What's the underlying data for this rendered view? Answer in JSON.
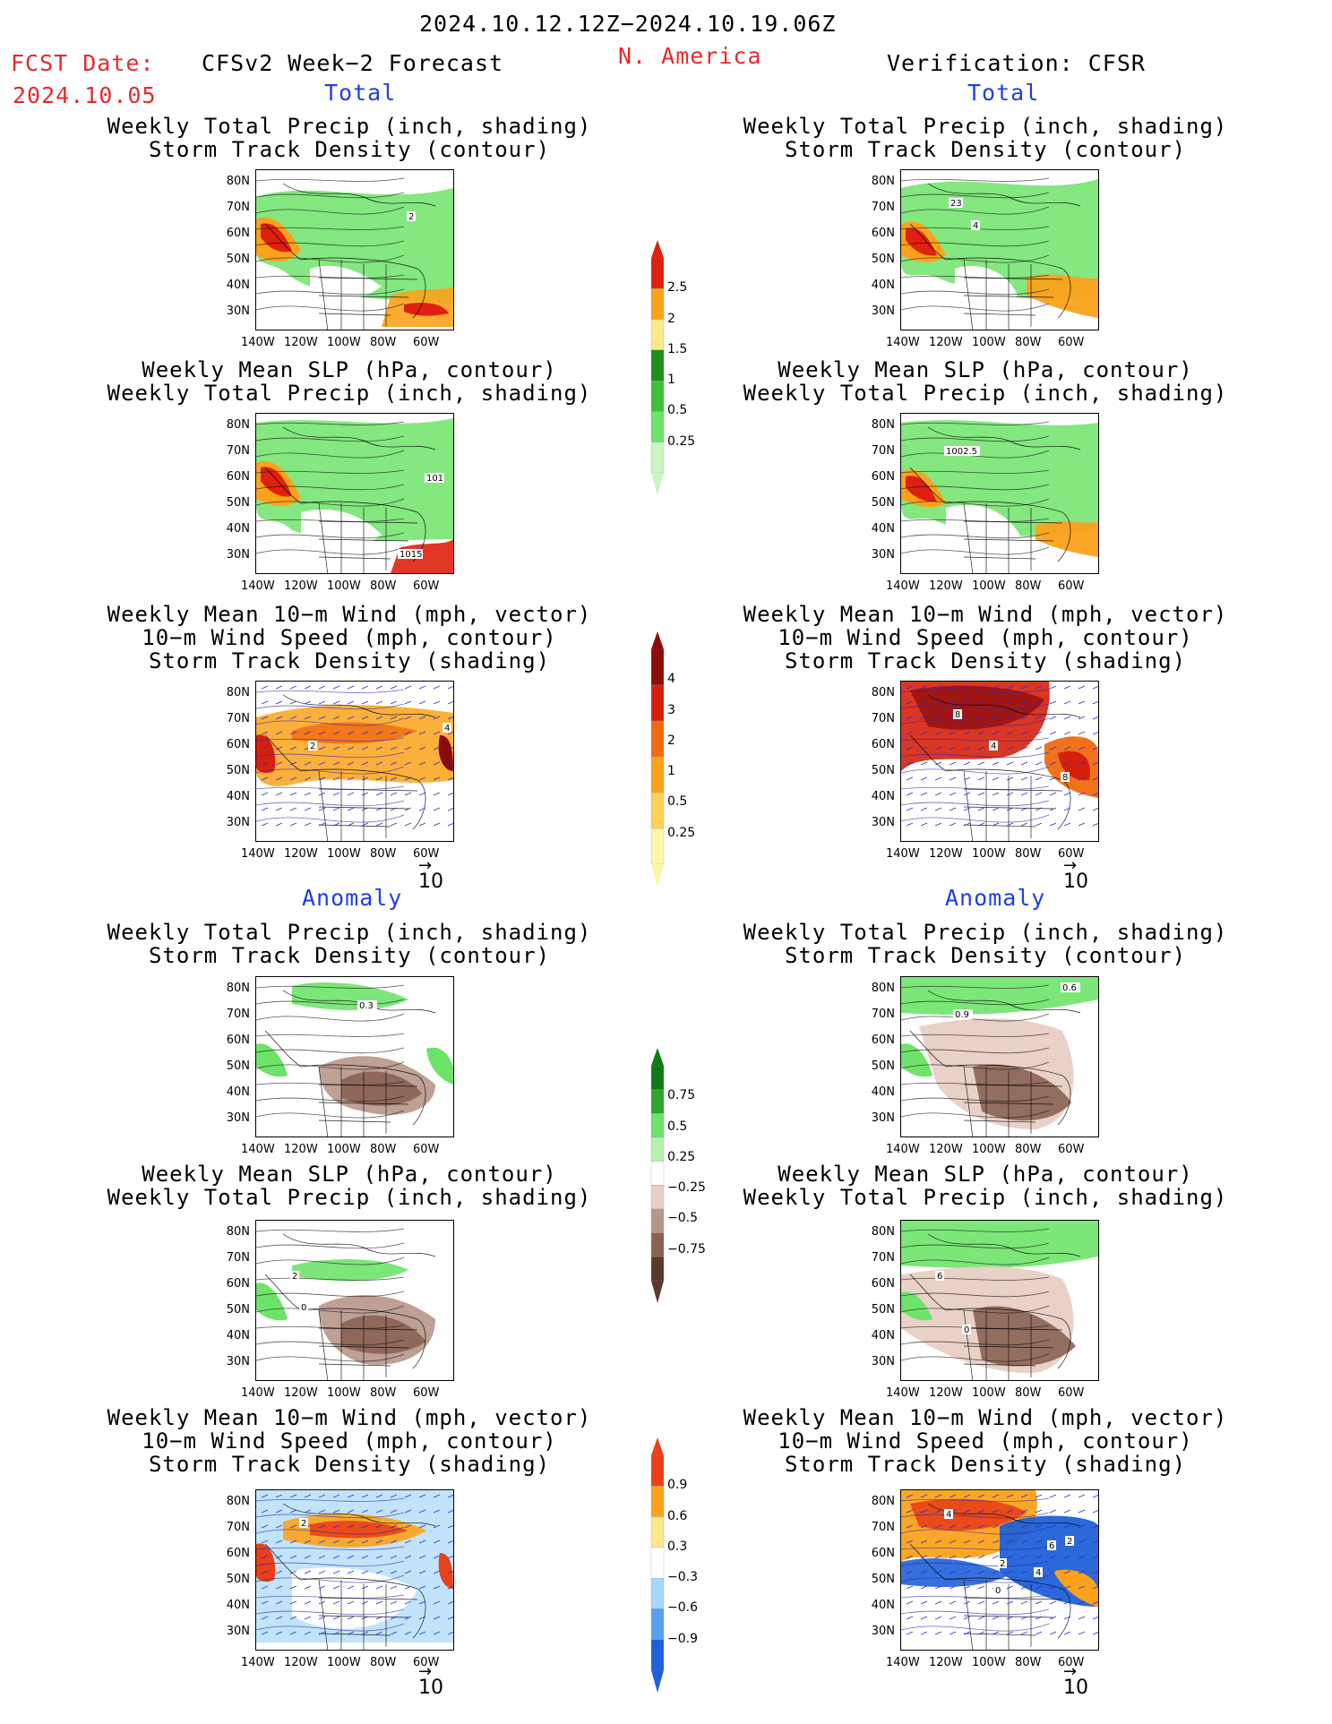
{
  "header": {
    "date_range": "2024.10.12.12Z−2024.10.19.06Z",
    "fcst_label": "FCST Date:",
    "fcst_date": "2024.10.05",
    "model_title": "CFSv2 Week−2 Forecast",
    "region": "N. America",
    "verification": "Verification: CFSR"
  },
  "sections": {
    "total": "Total",
    "anomaly": "Anomaly"
  },
  "panel_titles": {
    "precip_storm": [
      "Weekly Total Precip (inch, shading)",
      "Storm Track Density (contour)"
    ],
    "slp_precip": [
      "Weekly Mean SLP (hPa, contour)",
      "Weekly Total Precip (inch, shading)"
    ],
    "wind_storm": [
      "Weekly Mean 10−m Wind (mph, vector)",
      "10−m Wind Speed (mph, contour)",
      "Storm Track Density (shading)"
    ]
  },
  "axes": {
    "lat_labels": [
      "80N",
      "70N",
      "60N",
      "50N",
      "40N",
      "30N"
    ],
    "lon_labels": [
      "140W",
      "120W",
      "100W",
      "80W",
      "60W"
    ]
  },
  "vector_scale": "10",
  "colorbars": {
    "total_precip": [
      "2.5",
      "2",
      "1.5",
      "1",
      "0.5",
      "0.25"
    ],
    "total_storm": [
      "4",
      "3",
      "2",
      "1",
      "0.5",
      "0.25"
    ],
    "anom_precip": [
      "0.75",
      "0.5",
      "0.25",
      "−0.25",
      "−0.5",
      "−0.75"
    ],
    "anom_storm": [
      "0.9",
      "0.6",
      "0.3",
      "−0.3",
      "−0.6",
      "−0.9"
    ]
  },
  "contour_labels": {
    "fc_total_precip": [
      "2"
    ],
    "cf_total_precip": [
      "23",
      "4"
    ],
    "fc_total_slp": [
      "101",
      "1015"
    ],
    "cf_total_slp": [
      "1002.5"
    ],
    "fc_total_wind": [
      "2",
      "4"
    ],
    "cf_total_wind": [
      "8",
      "4",
      "8"
    ],
    "fc_anom_precip": [
      "0.3"
    ],
    "cf_anom_precip": [
      "0.9",
      "0.6"
    ],
    "fc_anom_slp": [
      "2",
      "0"
    ],
    "cf_anom_slp": [
      "6",
      "0"
    ],
    "fc_anom_wind": [
      "2"
    ],
    "cf_anom_wind": [
      "4",
      "6",
      "2",
      "2",
      "4",
      "0"
    ]
  },
  "colors": {
    "header_red": "#e8292b",
    "section_blue": "#1f3dea",
    "precip_scale": [
      "#c8f5c0",
      "#6ee36a",
      "#3cc23a",
      "#1f8f1f",
      "#fde88a",
      "#fba21a",
      "#e0200f"
    ],
    "storm_scale": [
      "#fff5a8",
      "#fdd25a",
      "#fba21a",
      "#f06a10",
      "#d6200c",
      "#8c0c0c"
    ],
    "anom_precip_scale": [
      "#5a3a2a",
      "#8a6252",
      "#b8968a",
      "#e8cfc5",
      "#ffffff",
      "#b8f0b0",
      "#6ee36a",
      "#2fa52f",
      "#117a17"
    ],
    "anom_storm_scale": [
      "#2060d8",
      "#5aa0f0",
      "#a8d8f8",
      "#ffffff",
      "#fde88a",
      "#fba21a",
      "#e8401a"
    ]
  }
}
